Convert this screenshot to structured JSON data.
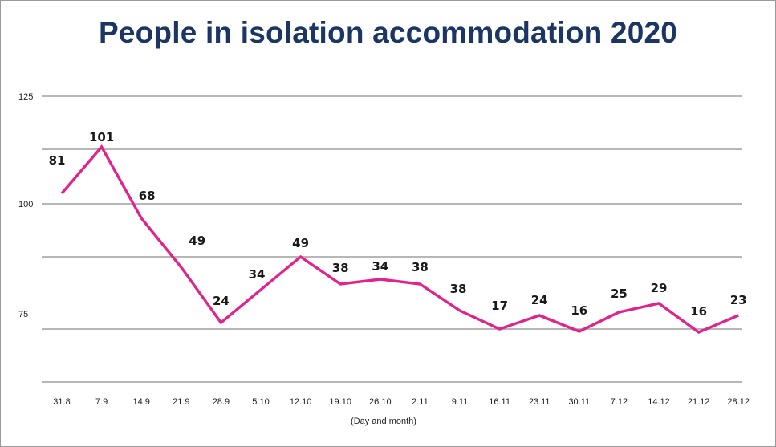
{
  "chart_data": {
    "type": "line",
    "title": "People in isolation accommodation 2020",
    "xlabel": "(Day and month)",
    "ylabel": "",
    "categories": [
      "31.8",
      "7.9",
      "14.9",
      "21.9",
      "28.9",
      "5.10",
      "12.10",
      "19.10",
      "26.10",
      "2.11",
      "9.11",
      "16.11",
      "23.11",
      "30.11",
      "7.12",
      "14.12",
      "21.12",
      "28.12"
    ],
    "y_ticks": [
      "125",
      "100",
      "75"
    ],
    "gridlines": true,
    "legend": "none",
    "line_color": "#e0248c",
    "title_color": "#1c3664",
    "series": [
      {
        "values": [
          81,
          101,
          68,
          49,
          24,
          34,
          49,
          38,
          34,
          38,
          38,
          17,
          24,
          16,
          25,
          29,
          16,
          23
        ]
      }
    ],
    "data_labels": [
      "81",
      "101",
      "68",
      "49",
      "24",
      "34",
      "49",
      "38",
      "34",
      "38",
      "38",
      "17",
      "24",
      "16",
      "25",
      "29",
      "16",
      "23"
    ]
  }
}
